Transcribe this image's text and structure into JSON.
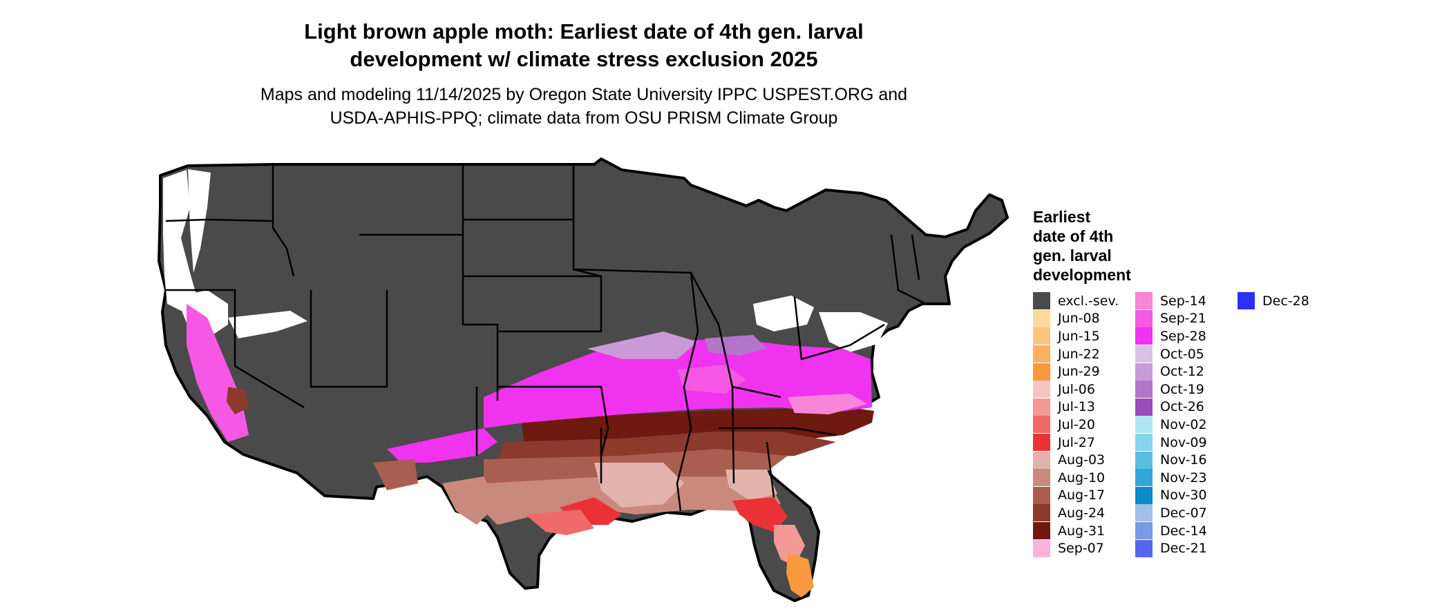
{
  "title": {
    "line1": "Light brown apple moth: Earliest date of 4th gen. larval",
    "line2": "development w/ climate stress exclusion 2025"
  },
  "subtitle": {
    "line1": "Maps and modeling 11/14/2025 by Oregon State University IPPC USPEST.ORG and",
    "line2": "USDA-APHIS-PPQ; climate data from OSU PRISM Climate Group"
  },
  "legend": {
    "title_lines": [
      "Earliest",
      "date of 4th",
      "gen. larval",
      "development"
    ],
    "items": [
      {
        "label": "excl.-sev.",
        "color": "#4a4a4a"
      },
      {
        "label": "Jun-08",
        "color": "#fdd99a"
      },
      {
        "label": "Jun-15",
        "color": "#fcc57f"
      },
      {
        "label": "Jun-22",
        "color": "#fbb064"
      },
      {
        "label": "Jun-29",
        "color": "#f9993f"
      },
      {
        "label": "Jul-06",
        "color": "#f6c5c3"
      },
      {
        "label": "Jul-13",
        "color": "#f39a97"
      },
      {
        "label": "Jul-20",
        "color": "#ef6b69"
      },
      {
        "label": "Jul-27",
        "color": "#ea3236"
      },
      {
        "label": "Aug-03",
        "color": "#e2b3ab"
      },
      {
        "label": "Aug-10",
        "color": "#c98a7d"
      },
      {
        "label": "Aug-17",
        "color": "#aa5e50"
      },
      {
        "label": "Aug-24",
        "color": "#8b3a2c"
      },
      {
        "label": "Aug-31",
        "color": "#6e1a10"
      },
      {
        "label": "Sep-07",
        "color": "#fbb1dd"
      },
      {
        "label": "Sep-14",
        "color": "#f886d8"
      },
      {
        "label": "Sep-21",
        "color": "#f559e4"
      },
      {
        "label": "Sep-28",
        "color": "#f033ee"
      },
      {
        "label": "Oct-05",
        "color": "#dcc1e6"
      },
      {
        "label": "Oct-12",
        "color": "#c99ad7"
      },
      {
        "label": "Oct-19",
        "color": "#b276c8"
      },
      {
        "label": "Oct-26",
        "color": "#9b4ab7"
      },
      {
        "label": "Nov-02",
        "color": "#b3e6f5"
      },
      {
        "label": "Nov-09",
        "color": "#8ad2ee"
      },
      {
        "label": "Nov-16",
        "color": "#5abde4"
      },
      {
        "label": "Nov-23",
        "color": "#33a6d7"
      },
      {
        "label": "Nov-30",
        "color": "#0a8cc9"
      },
      {
        "label": "Dec-07",
        "color": "#9fbfe6"
      },
      {
        "label": "Dec-14",
        "color": "#7a9ae9"
      },
      {
        "label": "Dec-21",
        "color": "#5467ee"
      },
      {
        "label": "Dec-28",
        "color": "#2b30f7"
      }
    ]
  }
}
